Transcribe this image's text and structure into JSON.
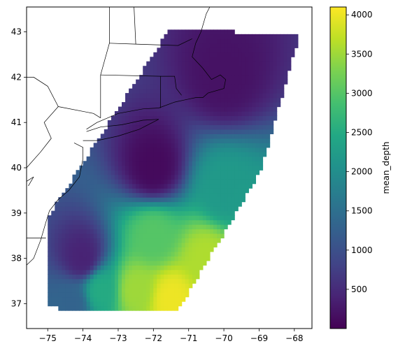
{
  "chart_data": {
    "type": "heatmap",
    "projection": "PlateCarree",
    "colormap": "viridis",
    "colorbar": {
      "label": "mean_depth",
      "range": [
        0,
        4100
      ],
      "ticks": [
        500,
        1000,
        1500,
        2000,
        2500,
        3000,
        3500,
        4000
      ],
      "tick_labels": [
        "500",
        "1000",
        "1500",
        "2000",
        "2500",
        "3000",
        "3500",
        "4000"
      ],
      "placement": "right"
    },
    "x_axis": {
      "range": [
        -75.6,
        -67.5
      ],
      "ticks": [
        -75,
        -74,
        -73,
        -72,
        -71,
        -70,
        -69,
        -68
      ],
      "tick_labels": [
        "−75",
        "−74",
        "−73",
        "−72",
        "−71",
        "−70",
        "−69",
        "−68"
      ]
    },
    "y_axis": {
      "range": [
        36.45,
        43.55
      ],
      "ticks": [
        37,
        38,
        39,
        40,
        41,
        42,
        43
      ],
      "tick_labels": [
        "37",
        "38",
        "39",
        "40",
        "41",
        "42",
        "43"
      ]
    },
    "grid": false,
    "domain_corners": [
      [
        -75.05,
        37.0
      ],
      [
        -74.6,
        36.85
      ],
      [
        -71.3,
        36.85
      ],
      [
        -68.95,
        39.95
      ],
      [
        -67.85,
        42.95
      ],
      [
        -71.55,
        43.05
      ],
      [
        -75.05,
        38.85
      ]
    ],
    "depth_field_anchors": [
      {
        "lon": -71.5,
        "lat": 37.1,
        "depth": 4000
      },
      {
        "lon": -72.5,
        "lat": 37.3,
        "depth": 3500
      },
      {
        "lon": -70.5,
        "lat": 38.0,
        "depth": 3600
      },
      {
        "lon": -73.5,
        "lat": 37.3,
        "depth": 2500
      },
      {
        "lon": -72.0,
        "lat": 38.5,
        "depth": 3000
      },
      {
        "lon": -70.0,
        "lat": 39.5,
        "depth": 2200
      },
      {
        "lon": -74.3,
        "lat": 37.0,
        "depth": 1300
      },
      {
        "lon": -74.0,
        "lat": 38.0,
        "depth": 400
      },
      {
        "lon": -72.0,
        "lat": 40.0,
        "depth": 100
      },
      {
        "lon": -70.0,
        "lat": 42.0,
        "depth": 200
      }
    ]
  }
}
